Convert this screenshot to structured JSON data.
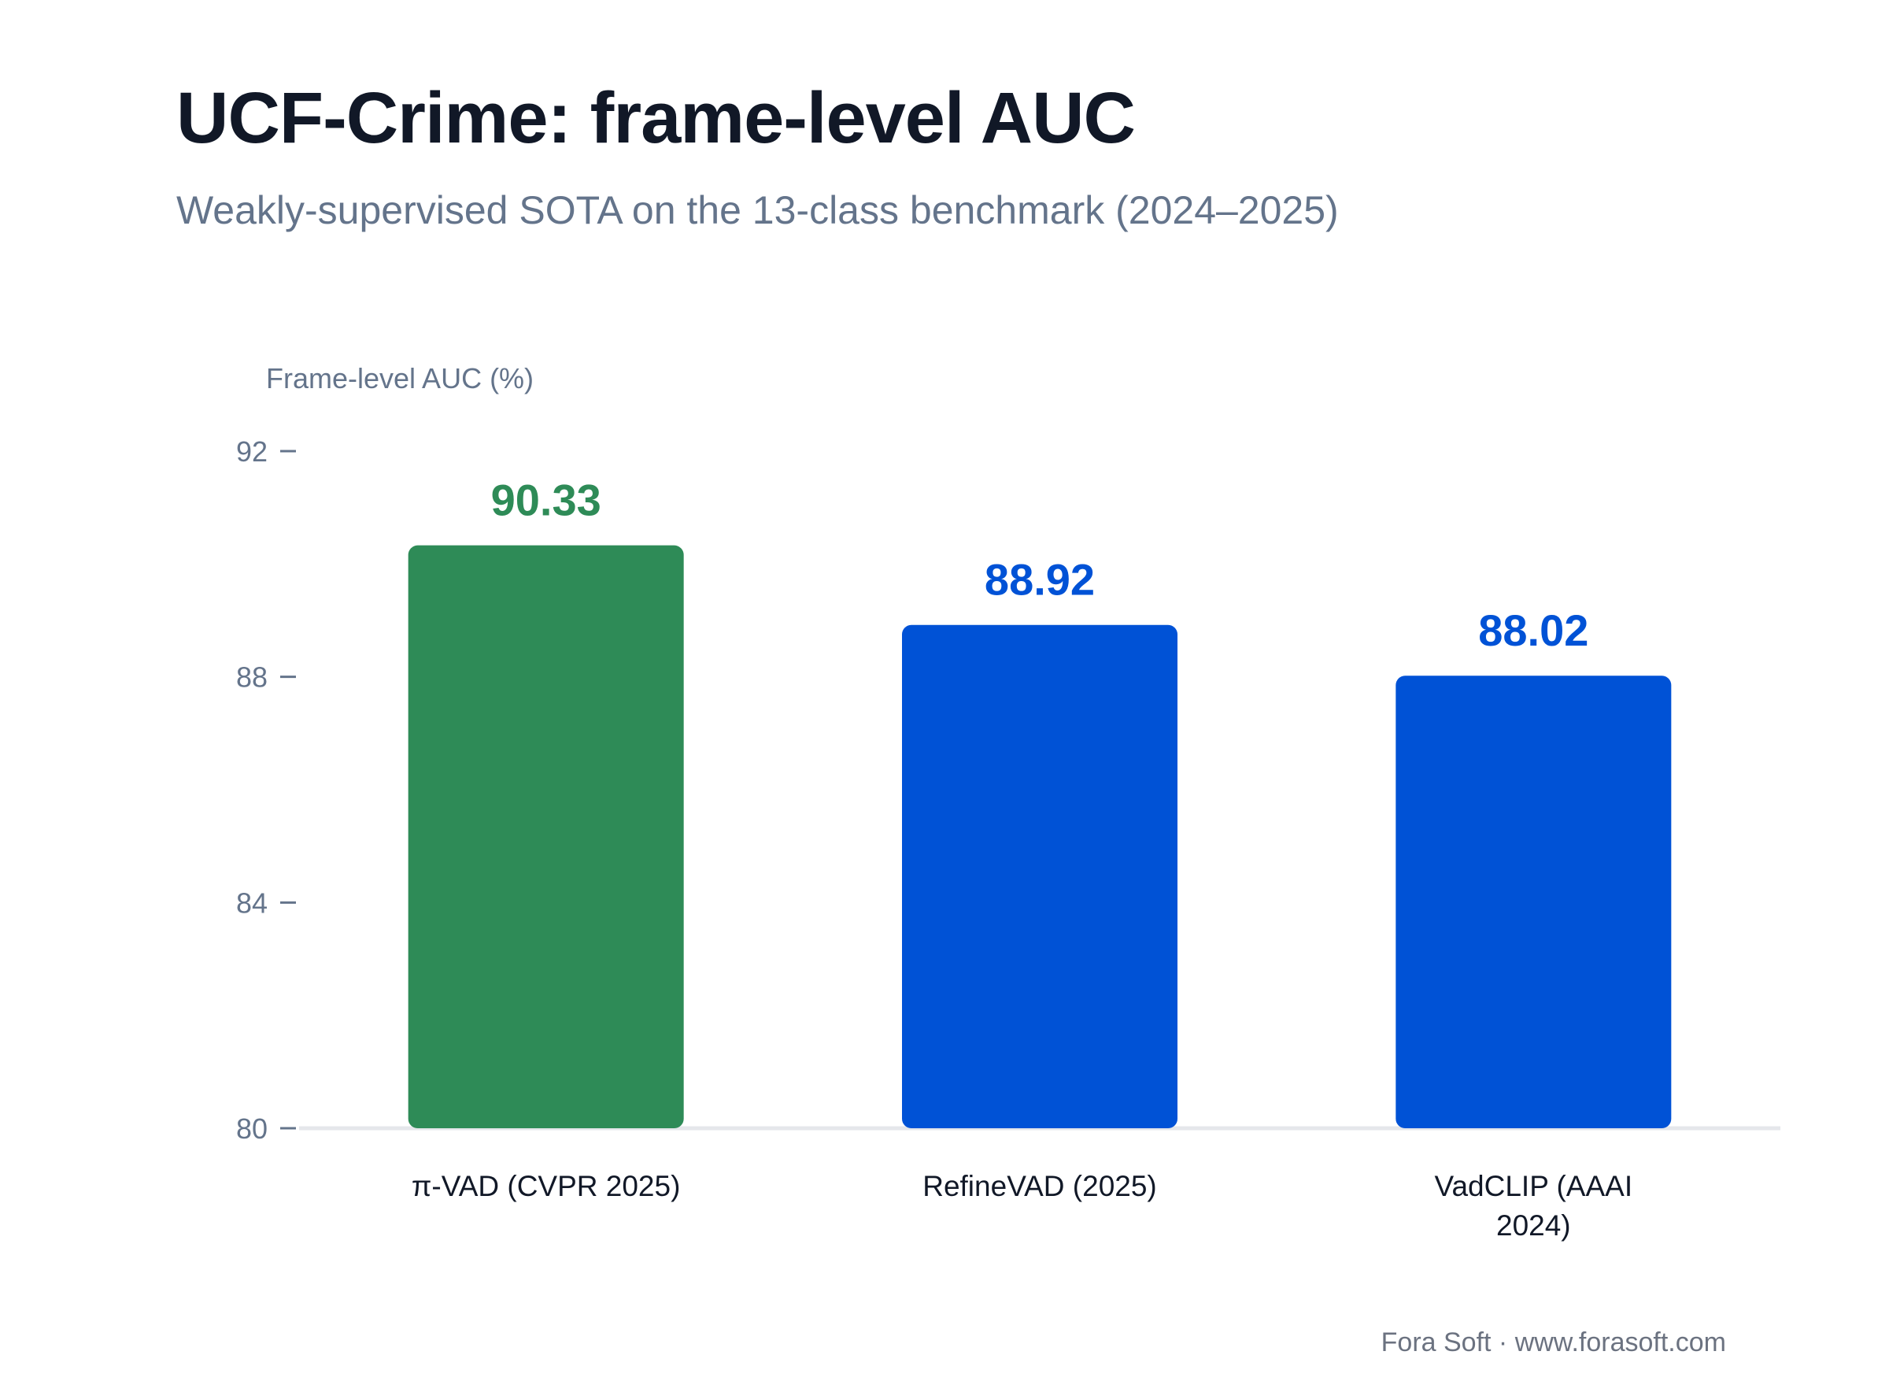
{
  "header": {
    "title": "UCF-Crime: frame-level AUC",
    "subtitle": "Weakly-supervised SOTA on the 13-class benchmark (2024–2025)"
  },
  "footer": {
    "credit": "Fora Soft · www.forasoft.com"
  },
  "colors": {
    "highlight": "#2e8b57",
    "default": "#0052d6",
    "axis_text": "#64748b",
    "baseline": "#e5e7eb"
  },
  "chart_data": {
    "type": "bar",
    "ylabel": "Frame-level AUC (%)",
    "ylim": [
      80,
      92
    ],
    "yticks": [
      "80",
      "84",
      "88",
      "92"
    ],
    "grid": false,
    "categories": [
      [
        "π-VAD (CVPR 2025)"
      ],
      [
        "RefineVAD (2025)"
      ],
      [
        "VadCLIP (AAAI",
        "2024)"
      ]
    ],
    "values": [
      90.33,
      88.92,
      88.02
    ],
    "value_labels": [
      "90.33",
      "88.92",
      "88.02"
    ],
    "highlight_index": 0
  }
}
